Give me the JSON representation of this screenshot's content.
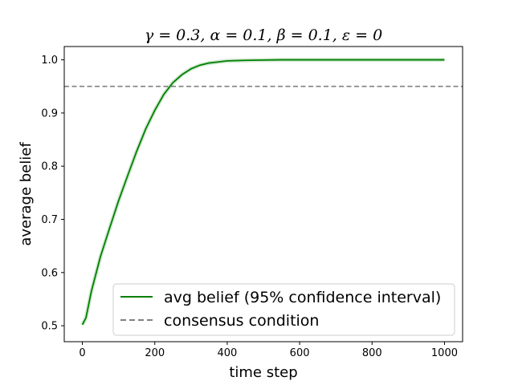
{
  "chart_data": {
    "type": "line",
    "title": "γ = 0.3, α = 0.1, β = 0.1, ε = 0",
    "xlabel": "time step",
    "ylabel": "average belief",
    "xlim": [
      -50,
      1050
    ],
    "ylim": [
      0.47,
      1.025
    ],
    "xticks": [
      0,
      200,
      400,
      600,
      800,
      1000
    ],
    "yticks": [
      0.5,
      0.6,
      0.7,
      0.8,
      0.9,
      1.0
    ],
    "xtick_labels": [
      "0",
      "200",
      "400",
      "600",
      "800",
      "1000"
    ],
    "ytick_labels": [
      "0.5",
      "0.6",
      "0.7",
      "0.8",
      "0.9",
      "1.0"
    ],
    "grid": false,
    "legend_position": "lower-right",
    "series": [
      {
        "name": "avg belief (95% confidence interval)",
        "color": "#008000",
        "style": "solid",
        "x": [
          0,
          10,
          25,
          50,
          75,
          100,
          125,
          150,
          175,
          200,
          225,
          250,
          275,
          300,
          325,
          350,
          375,
          400,
          450,
          500,
          550,
          600,
          700,
          800,
          900,
          1000
        ],
        "y": [
          0.502,
          0.515,
          0.565,
          0.63,
          0.683,
          0.735,
          0.782,
          0.828,
          0.87,
          0.905,
          0.935,
          0.957,
          0.972,
          0.983,
          0.99,
          0.994,
          0.996,
          0.998,
          0.999,
          0.9995,
          1.0,
          1.0,
          1.0,
          1.0,
          1.0,
          1.0
        ]
      },
      {
        "name": "consensus condition",
        "color": "#808080",
        "style": "dashed",
        "y_constant": 0.95
      }
    ]
  }
}
